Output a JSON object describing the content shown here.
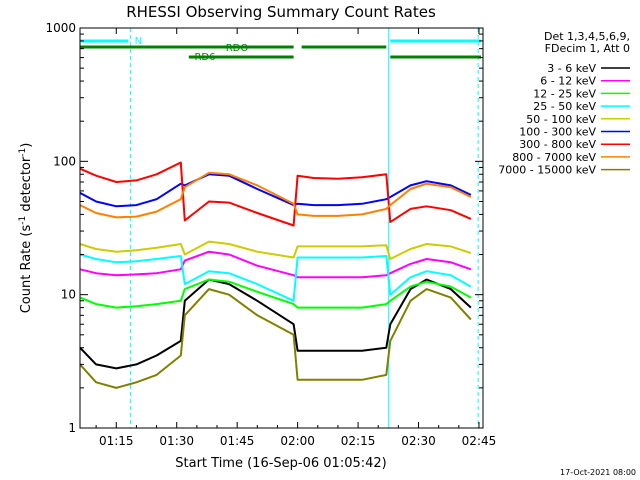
{
  "chart_data": {
    "type": "line",
    "title": "RHESSI Observing Summary Count Rates",
    "xlabel": "Start Time (16-Sep-06 01:05:42)",
    "ylabel_main": "Count Rate (s",
    "ylabel_sup1": "-1",
    "ylabel_mid": " detector",
    "ylabel_sup2": "-1",
    "ylabel_end": ")",
    "yscale": "log",
    "ylim": [
      1,
      1000
    ],
    "xlim_minutes": [
      66,
      166
    ],
    "x_ticks": [
      {
        "label": "01:15",
        "minute": 75
      },
      {
        "label": "01:30",
        "minute": 90
      },
      {
        "label": "01:45",
        "minute": 105
      },
      {
        "label": "02:00",
        "minute": 120
      },
      {
        "label": "02:15",
        "minute": 135
      },
      {
        "label": "02:30",
        "minute": 150
      },
      {
        "label": "02:45",
        "minute": 165
      }
    ],
    "y_ticks": [
      {
        "label": "1",
        "value": 1
      },
      {
        "label": "10",
        "value": 10
      },
      {
        "label": "100",
        "value": 100
      },
      {
        "label": "1000",
        "value": 1000
      }
    ],
    "legend_header": [
      "Det 1,3,4,5,6,9,",
      "FDecim 1, Att 0"
    ],
    "series": [
      {
        "name": "3 - 6 keV",
        "color": "#000000",
        "values": [
          4,
          3,
          2.8,
          3,
          3.5,
          4.5,
          9,
          13,
          12,
          9,
          6,
          3.8,
          3.8,
          3.8,
          3.8,
          4,
          6,
          11,
          13,
          11,
          8
        ]
      },
      {
        "name": "6 - 12 keV",
        "color": "#ff00ff",
        "values": [
          15.5,
          14.5,
          14,
          14.2,
          14.5,
          15.5,
          18,
          21,
          20,
          16.5,
          14,
          13.5,
          13.5,
          13.5,
          13.5,
          14,
          14.5,
          17,
          18.5,
          17.5,
          15.5
        ]
      },
      {
        "name": "12 - 25 keV",
        "color": "#00ff00",
        "values": [
          9.5,
          8.5,
          8,
          8.2,
          8.5,
          9,
          11,
          13,
          12.5,
          10.5,
          8.5,
          8,
          8,
          8,
          8,
          8.5,
          9,
          11.5,
          12.5,
          11.5,
          9.5
        ]
      },
      {
        "name": "25 - 50 keV",
        "color": "#00ffff",
        "values": [
          20,
          18.5,
          17.5,
          17.8,
          18.5,
          19.5,
          12,
          15,
          14.5,
          12,
          9,
          19,
          19,
          19,
          19,
          19.5,
          10,
          13.5,
          15,
          14,
          11.5
        ]
      },
      {
        "name": "50 - 100 keV",
        "color": "#cccc00",
        "values": [
          24,
          22,
          21,
          21.5,
          22.5,
          24,
          20,
          25,
          24,
          21,
          19,
          23,
          23,
          23,
          23,
          23.5,
          18.5,
          22,
          24,
          23,
          20.5
        ]
      },
      {
        "name": "100 - 300 keV",
        "color": "#0000ff",
        "values": [
          58,
          50,
          46,
          47,
          52,
          68,
          66,
          80,
          78,
          62,
          47,
          48,
          47,
          47,
          48,
          52,
          54,
          66,
          71,
          66,
          56
        ]
      },
      {
        "name": "300 - 800 keV",
        "color": "#ff0000",
        "values": [
          88,
          78,
          70,
          72,
          80,
          98,
          36,
          50,
          49,
          41,
          33,
          78,
          75,
          74,
          76,
          80,
          35,
          44,
          46,
          43,
          37
        ]
      },
      {
        "name": "800 - 7000 keV",
        "color": "#ff8000",
        "values": [
          47,
          41,
          38,
          38.5,
          42,
          52,
          64,
          82,
          80,
          66,
          48,
          40,
          39,
          39,
          40,
          44,
          47,
          62,
          68,
          64,
          54
        ]
      },
      {
        "name": "7000 - 15000 keV",
        "color": "#808000",
        "values": [
          3,
          2.2,
          2,
          2.2,
          2.5,
          3.5,
          7,
          11,
          10,
          7,
          5,
          2.3,
          2.3,
          2.3,
          2.3,
          2.5,
          4.5,
          9,
          11,
          9.5,
          6.5
        ]
      }
    ],
    "x_minutes": [
      66,
      70,
      75,
      80,
      85,
      91,
      92,
      98,
      103,
      110,
      119,
      120,
      124,
      130,
      136,
      142,
      143,
      148,
      152,
      158,
      163
    ],
    "vertical_markers_cyan": [
      66,
      78.5,
      142.6,
      164.8
    ],
    "flags": [
      {
        "label": "N",
        "color": "#00ffff",
        "segments": [
          [
            66,
            78
          ],
          [
            143,
            165.5
          ]
        ]
      },
      {
        "label": "RDO",
        "color": "#008000",
        "segments": [
          [
            66,
            119
          ],
          [
            121,
            142
          ]
        ]
      },
      {
        "label": "RD6",
        "color": "#008000",
        "segments": [
          [
            93,
            119
          ],
          [
            143,
            165.5
          ]
        ]
      }
    ],
    "footer_date": "17-Oct-2021 08:00"
  }
}
